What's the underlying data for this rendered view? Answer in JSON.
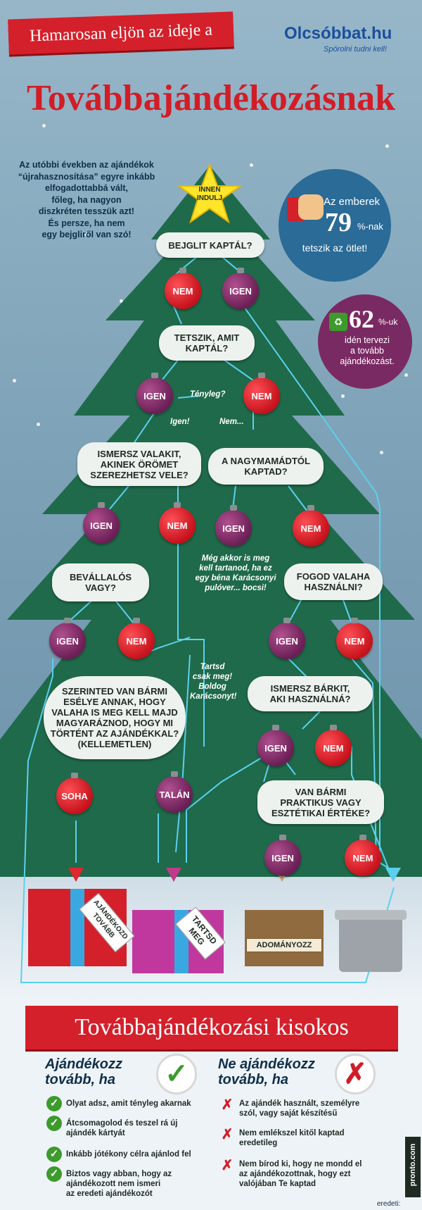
{
  "header": {
    "banner": "Hamarosan eljön az ideje a",
    "logo": "Olcsóbbat.hu",
    "logo_tagline": "Spórolni tudni kell!",
    "title": "Továbbajándékozásnak"
  },
  "intro": "Az utóbbi években az ajándékok\n“újrahasznosítása” egyre inkább\nelfogadottabbá vált,\nfőleg, ha nagyon\ndiszkréten tesszük azt!\nÉs persze, ha nem\negy bejgliről van szó!",
  "star_label": "INNEN\nINDULJ",
  "stats": {
    "s1_prefix": "Az emberek",
    "s1_value": "79",
    "s1_unit": "%-nak",
    "s1_suffix": "tetszik az ötlet!",
    "s2_value": "62",
    "s2_unit": "%-uk",
    "s2_suffix": "idén tervezi\na tovább\najándékozást."
  },
  "flow": {
    "q1": "BEJGLIT KAPTÁL?",
    "q2": "TETSZIK, AMIT\nKAPTÁL?",
    "q3": "ISMERSZ VALAKIT,\nAKINEK ÖRÖMET\nSZEREZHETSZ VELE?",
    "q4": "A NAGYMAMÁDTÓL\nKAPTAD?",
    "q5": "BEVÁLLALÓS\nVAGY?",
    "q6": "FOGOD VALAHA\nHASZNÁLNI?",
    "q7": "SZERINTED VAN BÁRMI\nESÉLYE ANNAK, HOGY\nVALAHA IS MEG KELL MAJD\nMAGYARÁZNOD, HOGY MI\nTÖRTÉNT AZ AJÁNDÉKKAL?\n(KELLEMETLEN)",
    "q8": "ISMERSZ BÁRKIT,\nAKI HASZNÁLNÁ?",
    "q9": "VAN BÁRMI\nPRAKTIKUS VAGY\nESZTÉTIKAI ÉRTÉKE?",
    "nem": "NEM",
    "igen": "IGEN",
    "soha": "SOHA",
    "talan": "TALÁN",
    "n_tenyleg": "Tényleg?",
    "n_igen": "Igen!",
    "n_nem": "Nem...",
    "n_meg": "Még akkor is meg\nkell tartanod, ha ez\negy béna Karácsonyi\npulóver... bocsi!",
    "n_tartsd": "Tartsd\ncsak meg!\nBoldog\nKarácsonyt!",
    "out1": "AJÁNDÉKOZD\nTOVÁBB",
    "out2": "TARTSD\nMEG",
    "out3": "ADOMÁNYOZZ"
  },
  "guide": {
    "title": "Továbbajándékozási kisokos",
    "left_head": "Ajándékozz\ntovább, ha",
    "right_head": "Ne ajándékozz\ntovább, ha",
    "left_items": [
      "Olyat adsz, amit tényleg akarnak",
      "Átcsomagolod és teszel rá új\najándék kártyát",
      "Inkább jótékony célra ajánlod fel",
      "Biztos vagy abban, hogy az\najándékozott nem ismeri\naz eredeti ajándékozót"
    ],
    "right_items": [
      "Az ajándék használt, személyre\nszól, vagy saját készítésű",
      "Nem emlékszel kitől kaptad\neredetileg",
      "Nem bírod ki, hogy ne mondd el\naz ajándékozottnak, hogy ezt\nvalójában Te kaptad"
    ]
  },
  "footer": {
    "source": "eredeti:",
    "brand": "pronto.com"
  },
  "colors": {
    "red": "#d21d27",
    "tree": "#1f6a4a",
    "navy": "#0f2f4a",
    "purple": "#7a2a63",
    "blue": "#2a6b97",
    "line": "#5ad0ee"
  }
}
